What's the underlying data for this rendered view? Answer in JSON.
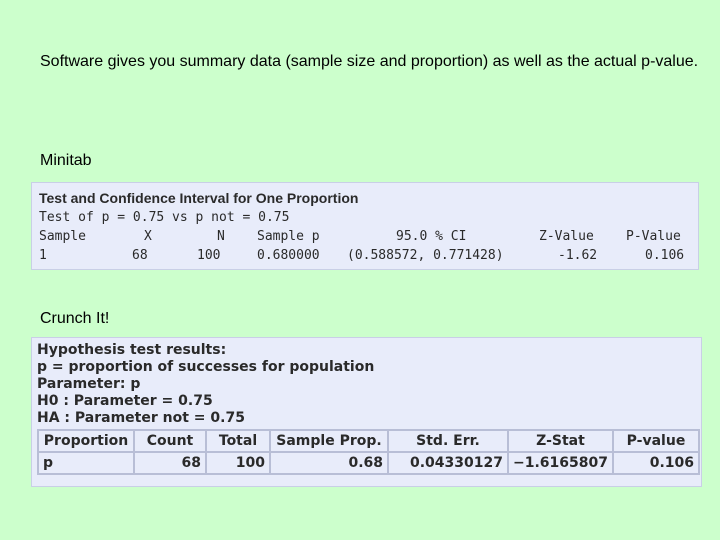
{
  "intro_text": "Software gives you summary data (sample size and proportion) as well as the actual p-value.",
  "minitab": {
    "label": "Minitab",
    "title": "Test and Confidence Interval for One Proportion",
    "test_line": "Test of p = 0.75 vs p not = 0.75",
    "headers": [
      "Sample",
      "X",
      "N",
      "Sample p",
      "95.0 % CI",
      "Z-Value",
      "P-Value"
    ],
    "row": [
      "1",
      "68",
      "100",
      "0.680000",
      "(0.588572, 0.771428)",
      "-1.62",
      "0.106"
    ]
  },
  "crunchit": {
    "label": "Crunch It!",
    "lines": [
      "Hypothesis test results:",
      "p = proportion of successes for population",
      "Parameter: p",
      "H0 : Parameter = 0.75",
      "HA : Parameter not = 0.75"
    ],
    "headers": [
      "Proportion",
      "Count",
      "Total",
      "Sample Prop.",
      "Std. Err.",
      "Z-Stat",
      "P-value"
    ],
    "row": [
      "p",
      "68",
      "100",
      "0.68",
      "0.04330127",
      "−1.6165807",
      "0.106"
    ]
  }
}
